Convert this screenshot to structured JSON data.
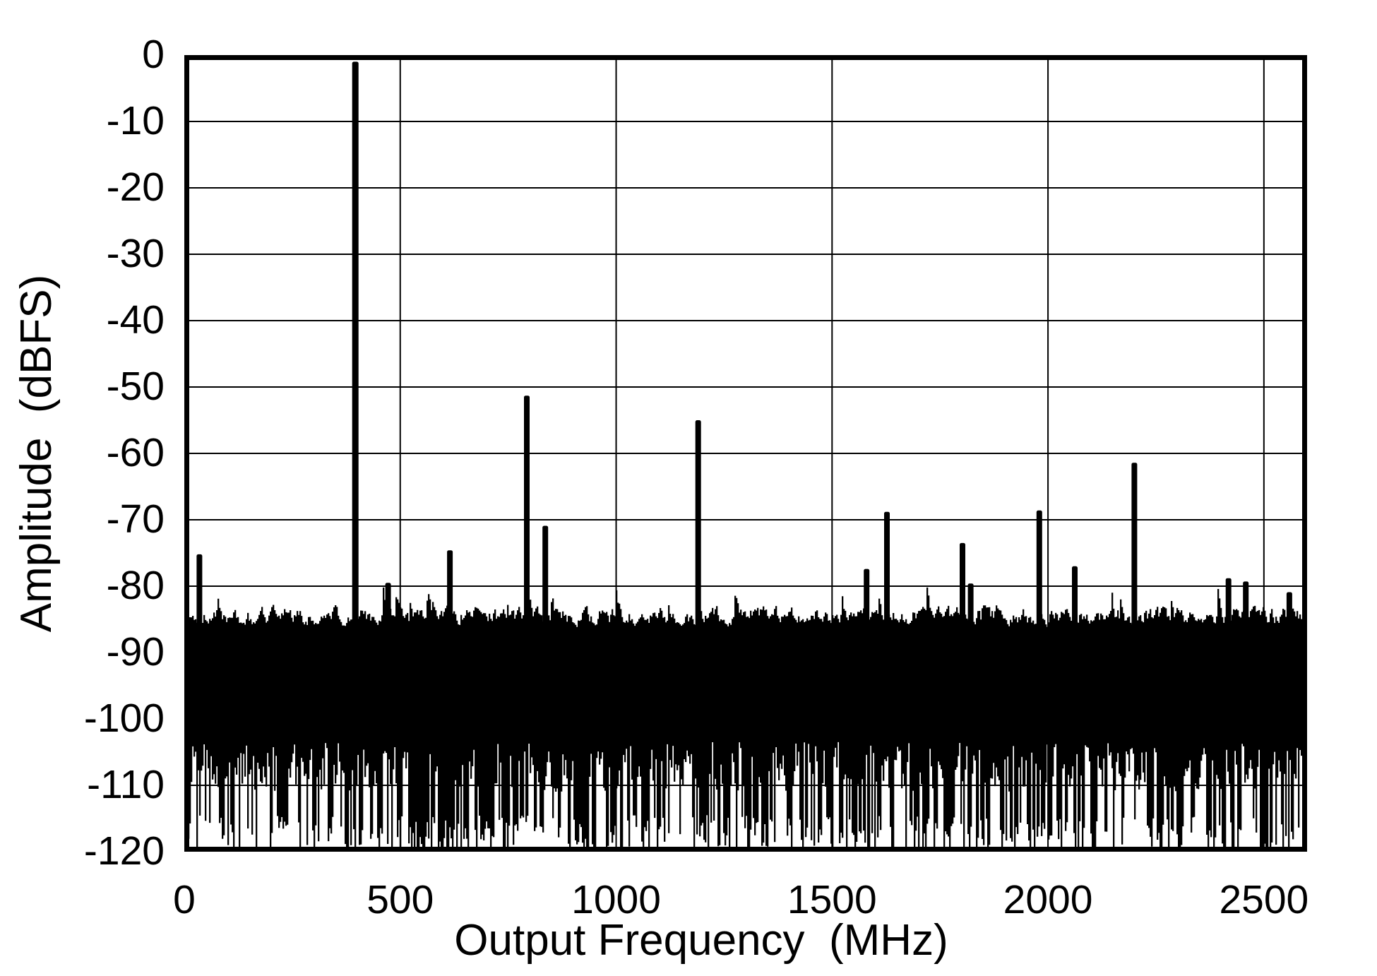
{
  "chart_data": {
    "type": "line",
    "subtype": "fft_spectrum",
    "title": "",
    "xlabel": "Output Frequency  (MHz)",
    "ylabel": "Amplitude  (dBFS)",
    "xlim": [
      0,
      2600
    ],
    "ylim": [
      -120,
      0
    ],
    "x_ticks": [
      0,
      500,
      1000,
      1500,
      2000,
      2500
    ],
    "y_ticks": [
      0,
      -10,
      -20,
      -30,
      -40,
      -50,
      -60,
      -70,
      -80,
      -90,
      -100,
      -110,
      -120
    ],
    "grid": true,
    "legend": "none",
    "colors": {
      "trace": "#000000",
      "grid": "#000000",
      "frame": "#000000",
      "background": "#ffffff"
    },
    "fundamental": {
      "frequency_mhz": 396,
      "amplitude_dbfs": -1.0
    },
    "peaks": [
      {
        "f_mhz": 35,
        "dbfs": -75.2
      },
      {
        "f_mhz": 472,
        "dbfs": -79.5
      },
      {
        "f_mhz": 615,
        "dbfs": -74.6
      },
      {
        "f_mhz": 793,
        "dbfs": -51.3
      },
      {
        "f_mhz": 836,
        "dbfs": -70.9
      },
      {
        "f_mhz": 1190,
        "dbfs": -55.0
      },
      {
        "f_mhz": 1580,
        "dbfs": -77.4
      },
      {
        "f_mhz": 1627,
        "dbfs": -68.8
      },
      {
        "f_mhz": 1802,
        "dbfs": -73.5
      },
      {
        "f_mhz": 1821,
        "dbfs": -79.6
      },
      {
        "f_mhz": 1980,
        "dbfs": -68.6
      },
      {
        "f_mhz": 2062,
        "dbfs": -77.0
      },
      {
        "f_mhz": 2200,
        "dbfs": -61.4
      },
      {
        "f_mhz": 2418,
        "dbfs": -78.8
      },
      {
        "f_mhz": 2458,
        "dbfs": -79.3
      },
      {
        "f_mhz": 2559,
        "dbfs": -80.9
      }
    ],
    "noise_floor": {
      "top_mean_dbfs": -84.5,
      "top_peak_dbfs": -80.2,
      "solid_below_dbfs": -87,
      "bottom_shallow_dbfs": -104,
      "bottom_min_dbfs": -120,
      "seed": 1337,
      "columns": 792
    }
  }
}
